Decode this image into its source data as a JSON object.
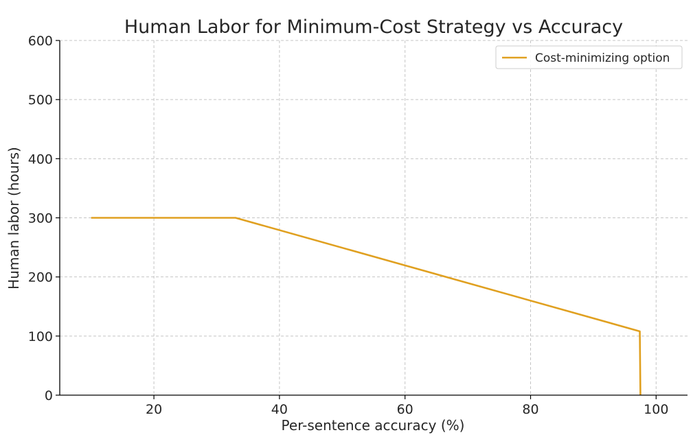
{
  "chart_data": {
    "type": "line",
    "title": "Human Labor for Minimum-Cost Strategy vs Accuracy",
    "xlabel": "Per-sentence accuracy (%)",
    "ylabel": "Human labor (hours)",
    "xlim": [
      5,
      105
    ],
    "ylim": [
      0,
      600
    ],
    "xticks": [
      "20",
      "40",
      "60",
      "80",
      "100"
    ],
    "yticks": [
      "0",
      "100",
      "200",
      "300",
      "400",
      "500",
      "600"
    ],
    "grid": true,
    "legend": {
      "position": "top-right"
    },
    "series": [
      {
        "name": "Cost-minimizing option",
        "color": "#e0a020",
        "x": [
          10,
          33,
          97.4,
          97.5
        ],
        "y": [
          300,
          300,
          108,
          0
        ]
      }
    ]
  }
}
